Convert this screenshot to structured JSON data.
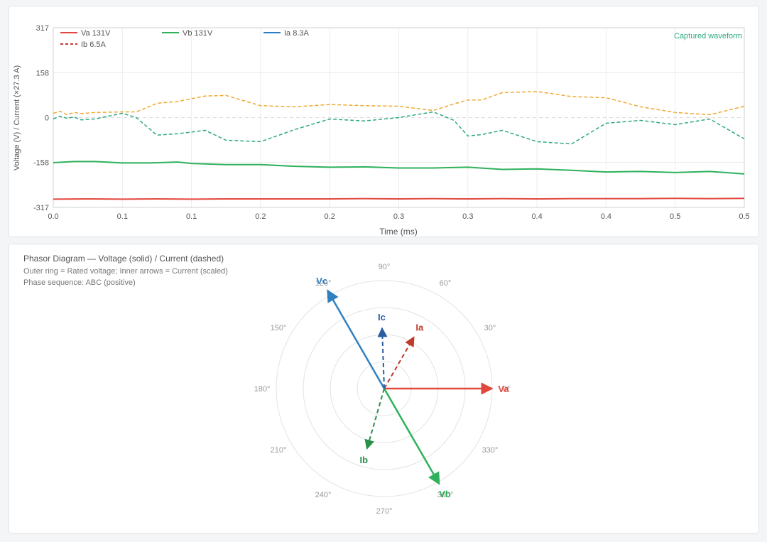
{
  "chart_data": [
    {
      "type": "line",
      "xlabel": "Time (ms)",
      "ylabel": "Voltage (V) / Current (×27.3 A)",
      "annotation": "Captured waveform",
      "ylim": [
        -317,
        317
      ],
      "xlim": [
        0,
        0.5
      ],
      "y_ticks": [
        "317",
        "158",
        "0",
        "-158",
        "-317"
      ],
      "y_tick_values": [
        317,
        158,
        0,
        -158,
        -317
      ],
      "x_ticks": [
        "0.0",
        "0.1",
        "0.1",
        "0.2",
        "0.2",
        "0.3",
        "0.3",
        "0.4",
        "0.4",
        "0.5",
        "0.5"
      ],
      "x_tick_values": [
        0,
        0.05,
        0.1,
        0.15,
        0.2,
        0.25,
        0.3,
        0.35,
        0.4,
        0.45,
        0.5
      ],
      "grid": true,
      "legend": [
        {
          "label": "Va 131V",
          "color": "#e2473d",
          "style": "solid"
        },
        {
          "label": "Vb 131V",
          "color": "#2eb15b",
          "style": "solid"
        },
        {
          "label": "Ia 8.3A",
          "color": "#2f80c2",
          "style": "solid"
        },
        {
          "label": "Ib 6.5A",
          "color": "#c0392b",
          "style": "dashed"
        }
      ],
      "series": [
        {
          "color": "#e2473d",
          "style": "solid",
          "x": [
            0,
            0.025,
            0.05,
            0.075,
            0.1,
            0.125,
            0.15,
            0.175,
            0.2,
            0.225,
            0.25,
            0.275,
            0.3,
            0.325,
            0.35,
            0.375,
            0.4,
            0.425,
            0.45,
            0.475,
            0.5
          ],
          "y": [
            -288,
            -287,
            -288,
            -287,
            -288,
            -287,
            -287,
            -287,
            -287,
            -286,
            -287,
            -286,
            -287,
            -286,
            -287,
            -286,
            -286,
            -286,
            -285,
            -286,
            -285
          ]
        },
        {
          "color": "#2eb15b",
          "style": "solid",
          "x": [
            0,
            0.015,
            0.03,
            0.05,
            0.07,
            0.09,
            0.1,
            0.125,
            0.15,
            0.175,
            0.2,
            0.225,
            0.25,
            0.275,
            0.3,
            0.325,
            0.35,
            0.375,
            0.4,
            0.425,
            0.45,
            0.475,
            0.5
          ],
          "y": [
            -159,
            -155,
            -155,
            -160,
            -160,
            -157,
            -162,
            -166,
            -166,
            -172,
            -175,
            -174,
            -178,
            -178,
            -175,
            -183,
            -181,
            -186,
            -192,
            -190,
            -194,
            -190,
            -199
          ]
        },
        {
          "color": "#f0a832",
          "style": "dashed",
          "x": [
            0,
            0.005,
            0.01,
            0.015,
            0.02,
            0.03,
            0.05,
            0.06,
            0.075,
            0.09,
            0.11,
            0.125,
            0.15,
            0.175,
            0.2,
            0.225,
            0.25,
            0.275,
            0.29,
            0.3,
            0.31,
            0.325,
            0.35,
            0.375,
            0.4,
            0.425,
            0.45,
            0.475,
            0.5
          ],
          "y": [
            15,
            22,
            10,
            18,
            14,
            18,
            20,
            20,
            50,
            57,
            76,
            78,
            42,
            38,
            46,
            42,
            40,
            25,
            48,
            62,
            62,
            88,
            92,
            74,
            70,
            38,
            18,
            10,
            40
          ]
        },
        {
          "color": "#2fa883",
          "style": "dashed",
          "x": [
            0,
            0.005,
            0.01,
            0.015,
            0.02,
            0.03,
            0.05,
            0.06,
            0.075,
            0.09,
            0.11,
            0.125,
            0.15,
            0.175,
            0.2,
            0.225,
            0.25,
            0.275,
            0.29,
            0.3,
            0.31,
            0.325,
            0.35,
            0.375,
            0.4,
            0.425,
            0.45,
            0.475,
            0.5
          ],
          "y": [
            -5,
            5,
            -3,
            2,
            -8,
            -5,
            15,
            0,
            -62,
            -57,
            -45,
            -80,
            -85,
            -42,
            -5,
            -12,
            0,
            20,
            -10,
            -65,
            -60,
            -45,
            -85,
            -93,
            -20,
            -10,
            -25,
            -5,
            -75
          ]
        }
      ]
    },
    {
      "type": "polar",
      "title": "Phasor Diagram — Voltage (solid) / Current (dashed)",
      "subtitle_lines": [
        "Outer ring = Rated voltage; Inner arrows = Current (scaled)",
        "Phase sequence: ABC (positive)"
      ],
      "angle_labels": [
        "0°",
        "30°",
        "60°",
        "90°",
        "120°",
        "150°",
        "180°",
        "210°",
        "240°",
        "270°",
        "300°",
        "330°"
      ],
      "angle_values": [
        0,
        30,
        60,
        90,
        120,
        150,
        180,
        210,
        240,
        270,
        300,
        330
      ],
      "phasors": [
        {
          "label": "Va",
          "angle": 0,
          "magnitude": 1.0,
          "color": "#e2473d",
          "style": "solid"
        },
        {
          "label": "Vb",
          "angle": -60,
          "magnitude": 1.02,
          "color": "#2eb15b",
          "style": "solid"
        },
        {
          "label": "Vc",
          "angle": 120,
          "magnitude": 1.05,
          "color": "#2f80c2",
          "style": "solid"
        },
        {
          "label": "Ia",
          "angle": 60,
          "magnitude": 0.55,
          "color": "#c0392b",
          "style": "dashed"
        },
        {
          "label": "Ib",
          "angle": 254,
          "magnitude": 0.58,
          "color": "#27914a",
          "style": "dashed"
        },
        {
          "label": "Ic",
          "angle": 92,
          "magnitude": 0.56,
          "color": "#285fa0",
          "style": "dashed"
        }
      ]
    }
  ]
}
